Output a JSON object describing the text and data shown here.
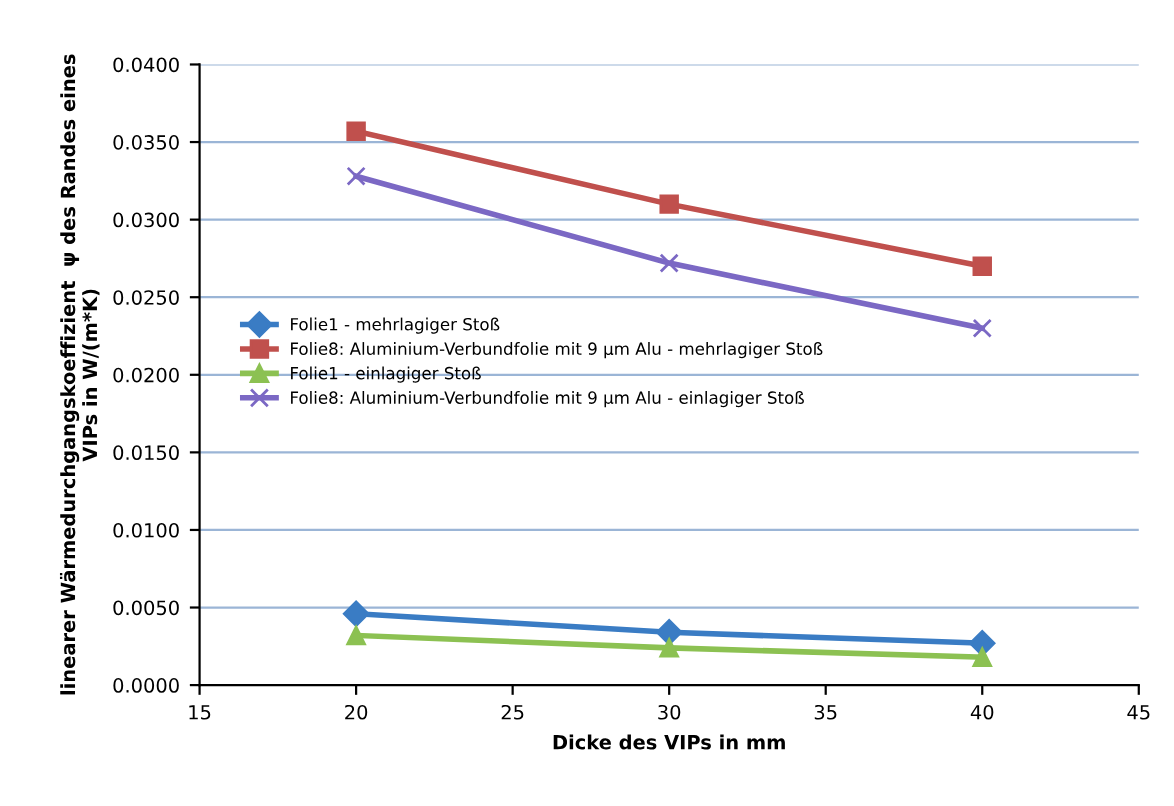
{
  "chart_data": {
    "type": "line",
    "xlabel": "Dicke des VIPs in mm",
    "ylabel": "linearer Wärmedurchgangskoeffizient  ψ des Randes eines\nVIPs in W/(m*K)",
    "x": [
      20,
      30,
      40
    ],
    "series": [
      {
        "name": "Folie1 - mehrlagiger Stoß",
        "color": "#3a7cc4",
        "marker": "diamond",
        "values": [
          0.0046,
          0.0034,
          0.0027
        ]
      },
      {
        "name": "Folie8: Aluminium-Verbundfolie mit 9 µm Alu - mehrlagiger Stoß",
        "color": "#c0504d",
        "marker": "square",
        "values": [
          0.0357,
          0.031,
          0.027
        ]
      },
      {
        "name": "Folie1 - einlagiger Stoß",
        "color": "#8cc152",
        "marker": "triangle",
        "values": [
          0.0032,
          0.0024,
          0.0018
        ]
      },
      {
        "name": "Folie8: Aluminium-Verbundfolie mit 9 µm Alu - einlagiger Stoß",
        "color": "#7b68c4",
        "marker": "cross",
        "values": [
          0.0328,
          0.0272,
          0.023
        ]
      }
    ],
    "xlim": [
      15,
      45
    ],
    "xticks": [
      15,
      20,
      25,
      30,
      35,
      40,
      45
    ],
    "ylim": [
      0,
      0.04
    ],
    "yticks": [
      {
        "value": 0,
        "label": "0.0000"
      },
      {
        "value": 0.005,
        "label": "0.0050"
      },
      {
        "value": 0.01,
        "label": "0.0100"
      },
      {
        "value": 0.015,
        "label": "0.0150"
      },
      {
        "value": 0.02,
        "label": "0.0200"
      },
      {
        "value": 0.025,
        "label": "0.0250"
      },
      {
        "value": 0.03,
        "label": "0.0300"
      },
      {
        "value": 0.035,
        "label": "0.0350"
      },
      {
        "value": 0.04,
        "label": "0.0400"
      }
    ],
    "grid": "y",
    "legend": "left"
  }
}
